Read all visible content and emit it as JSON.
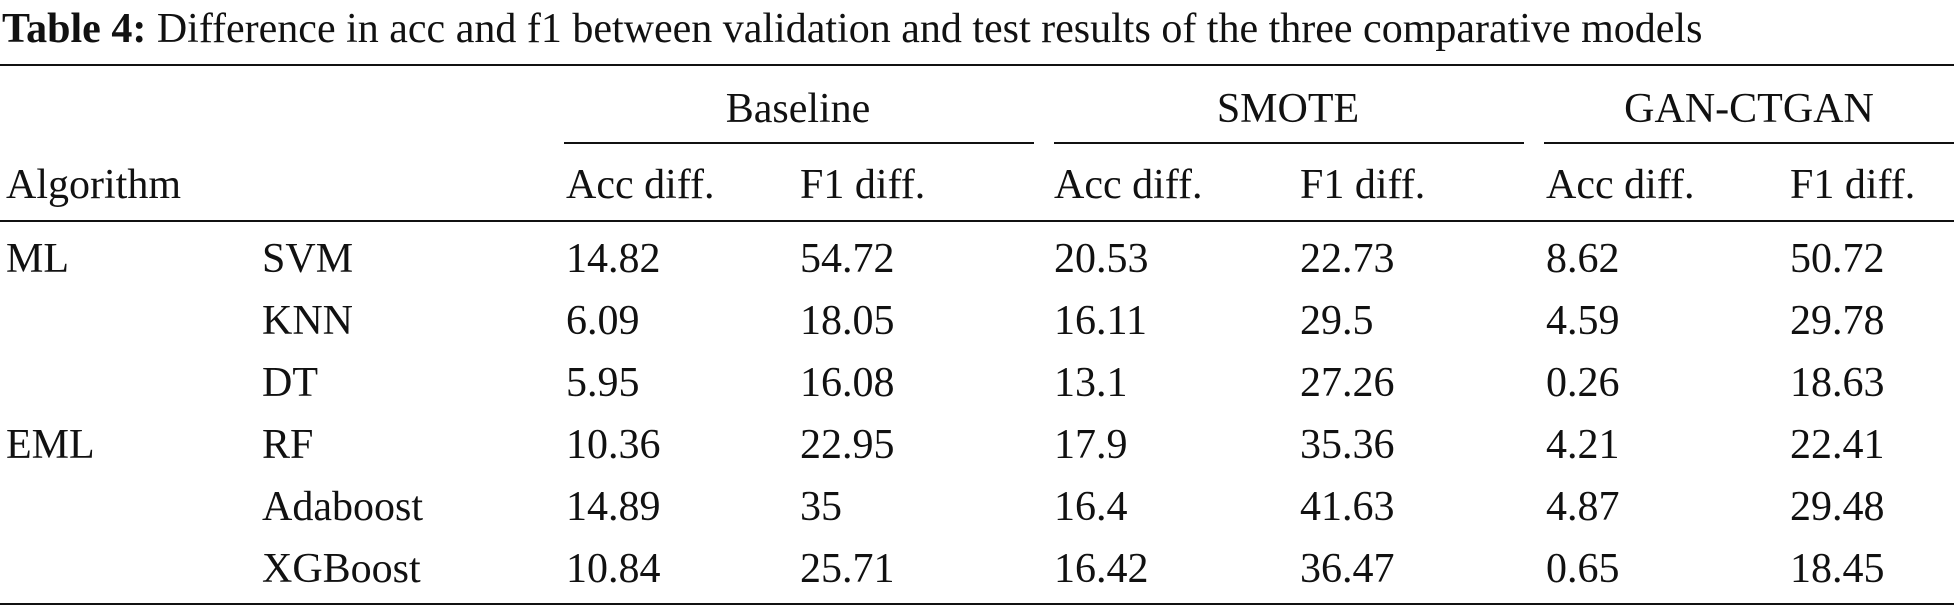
{
  "caption": {
    "label": "Table 4:",
    "text": " Difference in acc and f1 between validation and test results of the three comparative models"
  },
  "header": {
    "algorithm": "Algorithm",
    "groups": [
      "Baseline",
      "SMOTE",
      "GAN-CTGAN"
    ],
    "subcols": [
      "Acc diff.",
      "F1 diff.",
      "Acc diff.",
      "F1 diff.",
      "Acc diff.",
      "F1 diff."
    ]
  },
  "rows": [
    {
      "category": "ML",
      "model": "SVM",
      "values": [
        "14.82",
        "54.72",
        "20.53",
        "22.73",
        "8.62",
        "50.72"
      ]
    },
    {
      "category": "",
      "model": "KNN",
      "values": [
        "6.09",
        "18.05",
        "16.11",
        "29.5",
        "4.59",
        "29.78"
      ]
    },
    {
      "category": "",
      "model": "DT",
      "values": [
        "5.95",
        "16.08",
        "13.1",
        "27.26",
        "0.26",
        "18.63"
      ]
    },
    {
      "category": "EML",
      "model": "RF",
      "values": [
        "10.36",
        "22.95",
        "17.9",
        "35.36",
        "4.21",
        "22.41"
      ]
    },
    {
      "category": "",
      "model": "Adaboost",
      "values": [
        "14.89",
        "35",
        "16.4",
        "41.63",
        "4.87",
        "29.48"
      ]
    },
    {
      "category": "",
      "model": "XGBoost",
      "values": [
        "10.84",
        "25.71",
        "16.42",
        "36.47",
        "0.65",
        "18.45"
      ]
    }
  ]
}
